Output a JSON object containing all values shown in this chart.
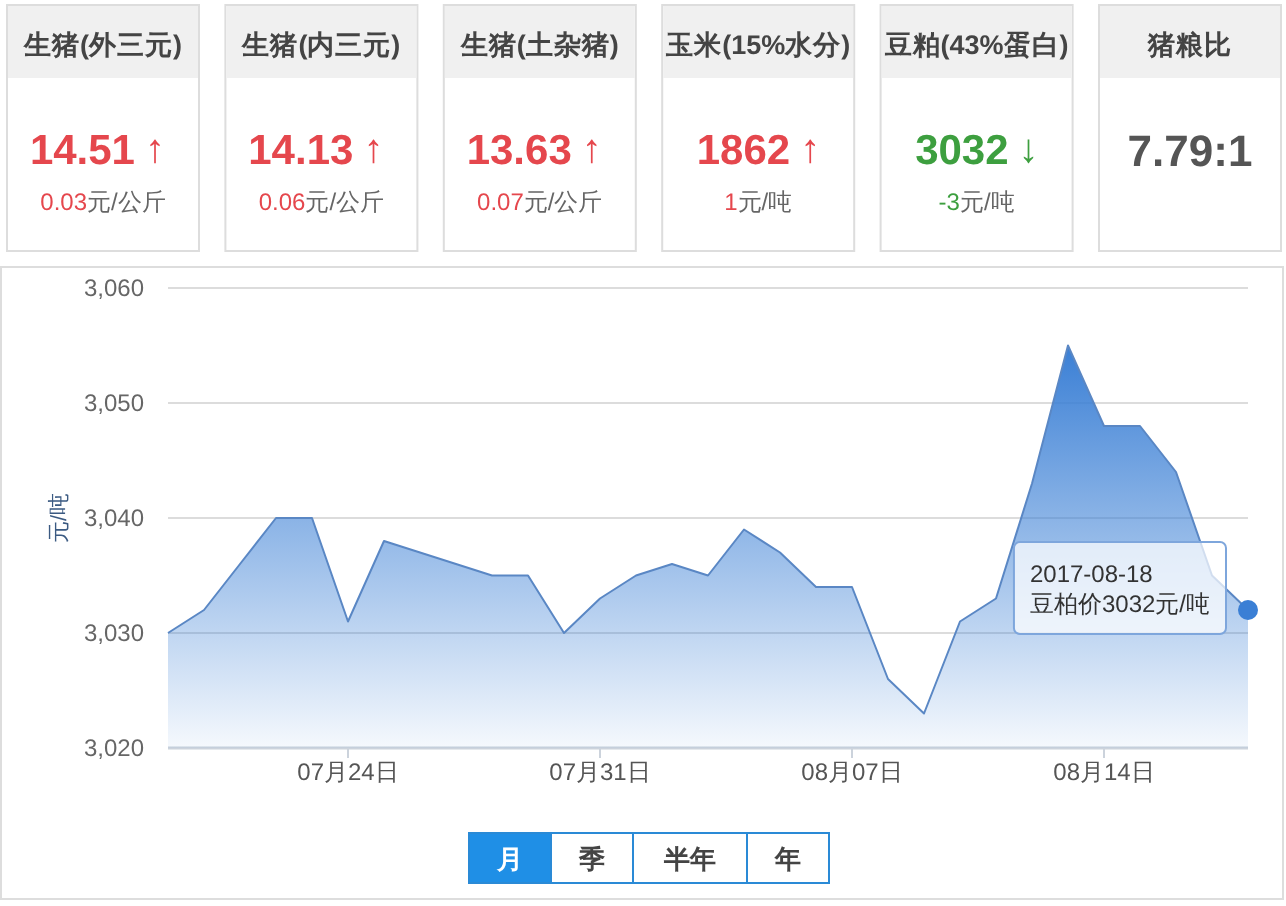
{
  "chart_data": [
    {
      "type": "other",
      "title": "生猪(外三元)",
      "color": "#e5474d",
      "annotations": [
        "14.51",
        "↑",
        "0.03",
        "元/公斤"
      ]
    },
    {
      "type": "other",
      "title": "生猪(内三元)",
      "color": "#e5474d",
      "annotations": [
        "14.13",
        "↑",
        "0.06",
        "元/公斤"
      ]
    },
    {
      "type": "other",
      "title": "生猪(土杂猪)",
      "color": "#e5474d",
      "annotations": [
        "13.63",
        "↑",
        "0.07",
        "元/公斤"
      ]
    },
    {
      "type": "other",
      "title": "玉米(15%水分)",
      "color": "#e5474d",
      "annotations": [
        "1862",
        "↑",
        "1",
        "元/吨"
      ]
    },
    {
      "type": "other",
      "title": "豆粕(43%蛋白)",
      "color": "#3d9f3f",
      "annotations": [
        "3032",
        "↓",
        "-3",
        "元/吨"
      ]
    },
    {
      "type": "other",
      "title": "猪粮比",
      "color": "#555555",
      "annotations": [
        "7.79:1"
      ]
    },
    {
      "type": "area",
      "ylabel": "元/吨",
      "x": [
        "2017-07-19",
        "2017-07-20",
        "2017-07-21",
        "2017-07-22",
        "2017-07-23",
        "2017-07-24",
        "2017-07-25",
        "2017-07-26",
        "2017-07-27",
        "2017-07-28",
        "2017-07-29",
        "2017-07-30",
        "2017-07-31",
        "2017-08-01",
        "2017-08-02",
        "2017-08-03",
        "2017-08-04",
        "2017-08-05",
        "2017-08-06",
        "2017-08-07",
        "2017-08-08",
        "2017-08-09",
        "2017-08-10",
        "2017-08-11",
        "2017-08-12",
        "2017-08-13",
        "2017-08-14",
        "2017-08-15",
        "2017-08-16",
        "2017-08-17",
        "2017-08-18"
      ],
      "series": [
        {
          "color": "#3a7fd5",
          "values": [
            3030,
            3032,
            3036,
            3040,
            3040,
            3031,
            3038,
            3037,
            3036,
            3035,
            3035,
            3030,
            3033,
            3035,
            3036,
            3035,
            3039,
            3037,
            3034,
            3034,
            3026,
            3023,
            3031,
            3033,
            3043,
            3055,
            3048,
            3048,
            3044,
            3035,
            3032
          ]
        }
      ],
      "xlim": [
        "2017-07-19",
        "2017-08-18"
      ],
      "xticks": [
        {
          "value": "2017-07-24",
          "label": "07月24日"
        },
        {
          "value": "2017-07-31",
          "label": "07月31日"
        },
        {
          "value": "2017-08-07",
          "label": "08月07日"
        },
        {
          "value": "2017-08-14",
          "label": "08月14日"
        }
      ],
      "ylim": [
        3020,
        3060
      ],
      "yticks": [
        {
          "value": 3020,
          "label": "3,020"
        },
        {
          "value": 3030,
          "label": "3,030"
        },
        {
          "value": 3040,
          "label": "3,040"
        },
        {
          "value": 3050,
          "label": "3,050"
        },
        {
          "value": 3060,
          "label": "3,060"
        }
      ],
      "grid": "y",
      "annotations": [
        {
          "text": "2017-08-18\n豆柏价3032元/吨",
          "x": "2017-08-18",
          "y": 3032
        },
        "月",
        "季",
        "半年",
        "年"
      ]
    }
  ]
}
